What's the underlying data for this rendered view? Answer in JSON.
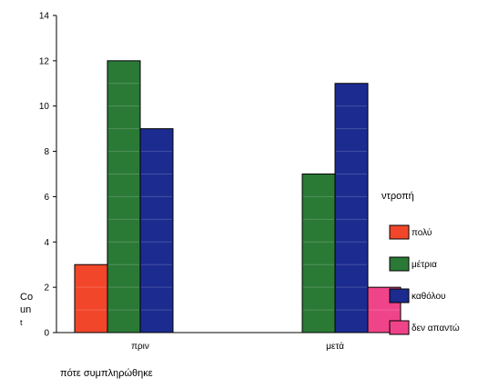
{
  "chart_data": {
    "type": "bar",
    "title": "",
    "categories": [
      "πριν",
      "μετά"
    ],
    "series": [
      {
        "name": "πολύ",
        "values": [
          3,
          0
        ],
        "color": "#f2462a"
      },
      {
        "name": "μέτρια",
        "values": [
          12,
          7
        ],
        "color": "#2a7a36"
      },
      {
        "name": "καθόλου",
        "values": [
          9,
          11
        ],
        "color": "#1c2b8f"
      },
      {
        "name": "δεν απαντώ",
        "values": [
          0,
          2
        ],
        "color": "#f0448a"
      }
    ],
    "xlabel": "πότε συμπληρώθηκε",
    "ylabel_lines": [
      "Co",
      "un",
      "t"
    ],
    "yticks": [
      0,
      2,
      4,
      6,
      8,
      10,
      12,
      14
    ],
    "ylim": [
      0,
      14
    ],
    "legend": {
      "title": "ντροπή",
      "placement": "right"
    },
    "grid": false
  }
}
